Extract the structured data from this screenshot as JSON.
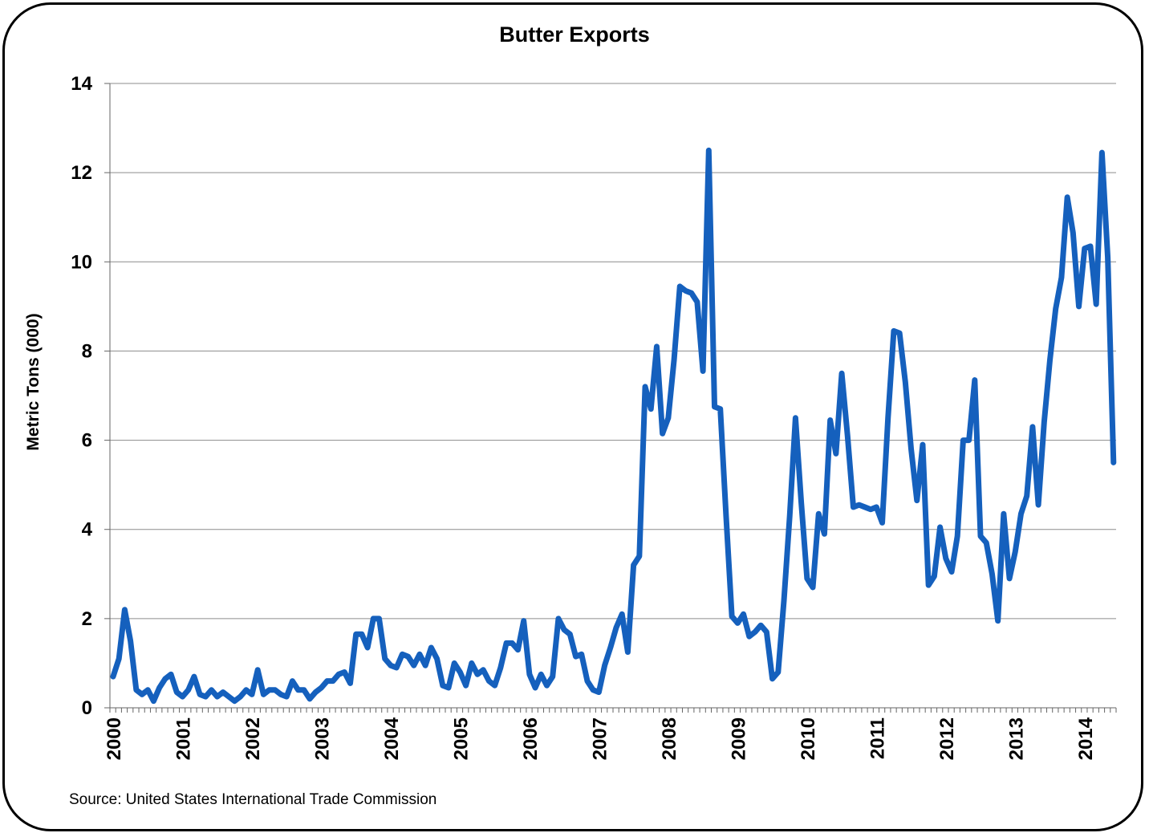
{
  "chart_data": {
    "type": "line",
    "title": "Butter Exports",
    "ylabel": "Metric Tons (000)",
    "xlabel": "",
    "source": "Source: United States International Trade Commission",
    "ylim": [
      0,
      14
    ],
    "yticks": [
      0,
      2,
      4,
      6,
      8,
      10,
      12,
      14
    ],
    "x_tick_labels": [
      "2000",
      "2001",
      "2002",
      "2003",
      "2004",
      "2005",
      "2006",
      "2007",
      "2008",
      "2009",
      "2010",
      "2011",
      "2012",
      "2013",
      "2014"
    ],
    "x_start": "2000-01",
    "x_end": "2014-05",
    "grid": true,
    "legend": "none",
    "line_color": "#1560BD",
    "series": [
      {
        "values": [
          0.7,
          1.1,
          2.2,
          1.5,
          0.4,
          0.3,
          0.4,
          0.15,
          0.45,
          0.65,
          0.75,
          0.35,
          0.25,
          0.4,
          0.7,
          0.3,
          0.25,
          0.4,
          0.25,
          0.35,
          0.25,
          0.15,
          0.25,
          0.4,
          0.3,
          0.85,
          0.3,
          0.4,
          0.4,
          0.3,
          0.25,
          0.6,
          0.4,
          0.4,
          0.2,
          0.35,
          0.45,
          0.6,
          0.6,
          0.75,
          0.8,
          0.55,
          1.65,
          1.65,
          1.35,
          2.0,
          2.0,
          1.1,
          0.95,
          0.9,
          1.2,
          1.15,
          0.95,
          1.2,
          0.95,
          1.35,
          1.1,
          0.5,
          0.45,
          1.0,
          0.8,
          0.5,
          1.0,
          0.75,
          0.85,
          0.6,
          0.5,
          0.9,
          1.45,
          1.45,
          1.3,
          1.95,
          0.75,
          0.45,
          0.75,
          0.5,
          0.7,
          2.0,
          1.75,
          1.65,
          1.15,
          1.2,
          0.6,
          0.4,
          0.35,
          0.95,
          1.35,
          1.8,
          2.1,
          1.25,
          3.2,
          3.4,
          7.2,
          6.7,
          8.1,
          6.15,
          6.5,
          7.8,
          9.45,
          9.35,
          9.3,
          9.1,
          7.55,
          12.5,
          6.75,
          6.7,
          4.3,
          2.05,
          1.9,
          2.1,
          1.6,
          1.7,
          1.85,
          1.7,
          0.65,
          0.8,
          2.4,
          4.3,
          6.5,
          4.6,
          2.9,
          2.7,
          4.35,
          3.9,
          6.45,
          5.7,
          7.5,
          6.1,
          4.5,
          4.55,
          4.5,
          4.45,
          4.5,
          4.15,
          6.5,
          8.45,
          8.4,
          7.3,
          5.8,
          4.65,
          5.9,
          2.75,
          2.95,
          4.05,
          3.35,
          3.05,
          3.85,
          6.0,
          6.0,
          7.35,
          3.85,
          3.7,
          3.0,
          1.95,
          4.35,
          2.9,
          3.5,
          4.35,
          4.75,
          6.3,
          4.55,
          6.4,
          7.8,
          8.95,
          9.65,
          11.45,
          10.65,
          9.0,
          10.3,
          10.35,
          9.05,
          12.45,
          10.1,
          5.5
        ]
      }
    ]
  }
}
